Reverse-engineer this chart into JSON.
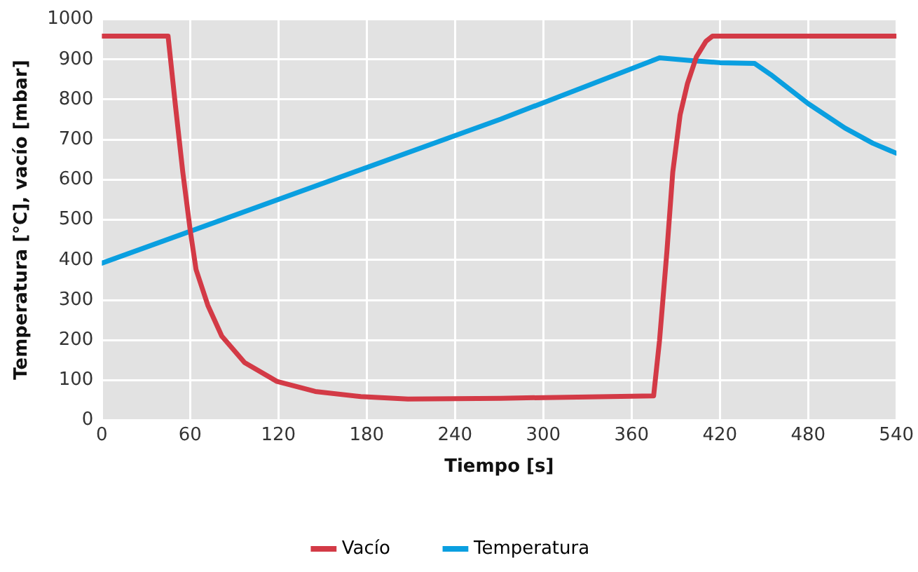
{
  "chart_data": {
    "type": "line",
    "xlabel": "Tiempo [s]",
    "ylabel": "Temperatura [°C], vacío [mbar]",
    "xlim": [
      0,
      540
    ],
    "xticks": [
      0,
      60,
      120,
      180,
      240,
      300,
      360,
      420,
      480,
      540
    ],
    "ylim": [
      0,
      1000
    ],
    "yticks": [
      0,
      100,
      200,
      300,
      400,
      500,
      600,
      700,
      800,
      900,
      1000
    ],
    "grid": true,
    "legend": "bottom",
    "marker": "none",
    "line_style": "solid",
    "series": [
      {
        "name": "Vacío",
        "color": "#d33a46",
        "x": [
          0,
          45,
          50,
          55,
          60,
          64,
          72,
          81.5,
          97,
          119,
          145,
          176,
          208,
          271,
          375,
          379,
          384,
          388,
          393,
          398,
          404,
          410.5,
          415,
          540
        ],
        "values": [
          958,
          958,
          785,
          619,
          475,
          376,
          287,
          210,
          144,
          97,
          72,
          59,
          53,
          55,
          61,
          199,
          420,
          619,
          762,
          840,
          906,
          945,
          958,
          958
        ]
      },
      {
        "name": "Temperatura",
        "color": "#0a9fe0",
        "x": [
          0,
          271,
          372.6,
          379,
          401,
          420,
          443.7,
          454.7,
          480,
          505,
          524,
          540
        ],
        "values": [
          392,
          751,
          895,
          904,
          897,
          892,
          890,
          862,
          790,
          729,
          691,
          666
        ]
      }
    ]
  }
}
